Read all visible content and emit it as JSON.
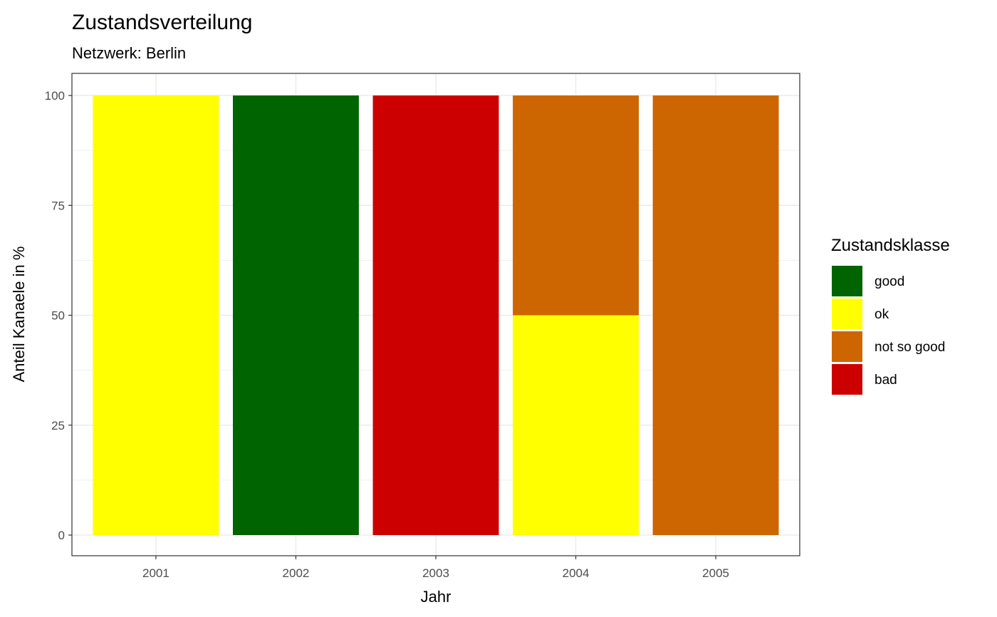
{
  "chart_data": {
    "type": "bar",
    "stacked": true,
    "title": "Zustandsverteilung",
    "subtitle": "Netzwerk: Berlin",
    "xlabel": "Jahr",
    "ylabel": "Anteil Kanaele in %",
    "categories": [
      "2001",
      "2002",
      "2003",
      "2004",
      "2005"
    ],
    "ylim": [
      0,
      100
    ],
    "yticks": [
      0,
      25,
      50,
      75,
      100
    ],
    "grid": true,
    "legend": {
      "title": "Zustandsklasse",
      "position": "right"
    },
    "series": [
      {
        "name": "good",
        "color": "#006400",
        "values": [
          0,
          100,
          0,
          0,
          0
        ]
      },
      {
        "name": "ok",
        "color": "#FFFF00",
        "values": [
          100,
          0,
          0,
          50,
          0
        ]
      },
      {
        "name": "not so good",
        "color": "#CD6600",
        "values": [
          0,
          0,
          0,
          50,
          100
        ]
      },
      {
        "name": "bad",
        "color": "#CD0000",
        "values": [
          0,
          0,
          100,
          0,
          0
        ]
      }
    ],
    "stack_order_bottom_to_top": [
      "ok",
      "good",
      "bad",
      "not so good"
    ]
  }
}
